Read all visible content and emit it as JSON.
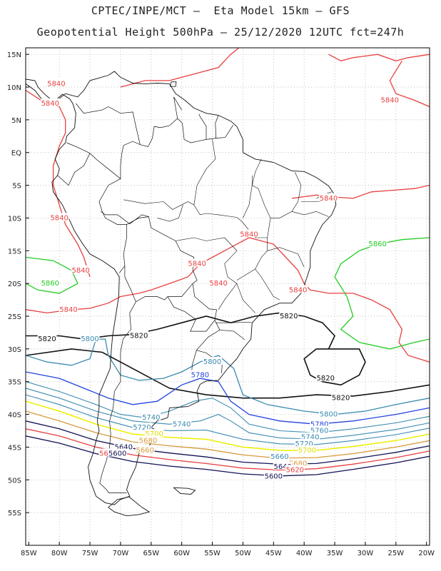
{
  "header": {
    "line1": "CPTEC/INPE/MCT –  Eta Model 15km – GFS",
    "line2": "Geopotential Height 500hPa – 25/12/2020 12UTC fct=247h"
  },
  "map": {
    "extent": {
      "lon": [
        -85.5,
        -19.5
      ],
      "lat": [
        -60,
        16
      ]
    },
    "lat_ticks": [
      {
        "v": 15,
        "label": "15N"
      },
      {
        "v": 10,
        "label": "10N"
      },
      {
        "v": 5,
        "label": "5N"
      },
      {
        "v": 0,
        "label": "EQ"
      },
      {
        "v": -5,
        "label": "5S"
      },
      {
        "v": -10,
        "label": "10S"
      },
      {
        "v": -15,
        "label": "15S"
      },
      {
        "v": -20,
        "label": "20S"
      },
      {
        "v": -25,
        "label": "25S"
      },
      {
        "v": -30,
        "label": "30S"
      },
      {
        "v": -35,
        "label": "35S"
      },
      {
        "v": -40,
        "label": "40S"
      },
      {
        "v": -45,
        "label": "45S"
      },
      {
        "v": -50,
        "label": "50S"
      },
      {
        "v": -55,
        "label": "55S"
      }
    ],
    "lon_ticks": [
      {
        "v": -85,
        "label": "85W"
      },
      {
        "v": -80,
        "label": "80W"
      },
      {
        "v": -75,
        "label": "75W"
      },
      {
        "v": -70,
        "label": "70W"
      },
      {
        "v": -65,
        "label": "65W"
      },
      {
        "v": -60,
        "label": "60W"
      },
      {
        "v": -55,
        "label": "55W"
      },
      {
        "v": -50,
        "label": "50W"
      },
      {
        "v": -45,
        "label": "45W"
      },
      {
        "v": -40,
        "label": "40W"
      },
      {
        "v": -35,
        "label": "35W"
      },
      {
        "v": -30,
        "label": "30W"
      },
      {
        "v": -25,
        "label": "25W"
      },
      {
        "v": -20,
        "label": "20W"
      }
    ],
    "contour_labels": [
      {
        "text": "5840",
        "color": "#e84040",
        "lon": -80.5,
        "lat": 10.5
      },
      {
        "text": "5840",
        "color": "#e84040",
        "lon": -81.5,
        "lat": 7.5
      },
      {
        "text": "5840",
        "color": "#e84040",
        "lon": -26,
        "lat": 8
      },
      {
        "text": "5840",
        "color": "#e84040",
        "lon": -80,
        "lat": -10
      },
      {
        "text": "5840",
        "color": "#e84040",
        "lon": -36,
        "lat": -7
      },
      {
        "text": "5840",
        "color": "#e84040",
        "lon": -49,
        "lat": -12.5
      },
      {
        "text": "5840",
        "color": "#e84040",
        "lon": -76.5,
        "lat": -18
      },
      {
        "text": "5840",
        "color": "#e84040",
        "lon": -57.5,
        "lat": -17
      },
      {
        "text": "5840",
        "color": "#e84040",
        "lon": -54,
        "lat": -20
      },
      {
        "text": "5840",
        "color": "#e84040",
        "lon": -41,
        "lat": -21
      },
      {
        "text": "5840",
        "color": "#e84040",
        "lon": -78.5,
        "lat": -24
      },
      {
        "text": "5860",
        "color": "#22cc22",
        "lon": -81.5,
        "lat": -20
      },
      {
        "text": "5860",
        "color": "#22cc22",
        "lon": -28,
        "lat": -14
      },
      {
        "text": "5820",
        "color": "#111111",
        "lon": -82,
        "lat": -28.5
      },
      {
        "text": "5820",
        "color": "#111111",
        "lon": -67,
        "lat": -28
      },
      {
        "text": "5820",
        "color": "#111111",
        "lon": -42.5,
        "lat": -25
      },
      {
        "text": "5820",
        "color": "#111111",
        "lon": -36.5,
        "lat": -34.5
      },
      {
        "text": "5820",
        "color": "#111111",
        "lon": -34,
        "lat": -37.5
      },
      {
        "text": "5800",
        "color": "#3a8ab0",
        "lon": -75,
        "lat": -28.5
      },
      {
        "text": "5800",
        "color": "#3a8ab0",
        "lon": -55,
        "lat": -32
      },
      {
        "text": "5800",
        "color": "#3a8ab0",
        "lon": -36,
        "lat": -40
      },
      {
        "text": "5780",
        "color": "#2244dd",
        "lon": -57,
        "lat": -34
      },
      {
        "text": "5780",
        "color": "#2244dd",
        "lon": -37.5,
        "lat": -41.5
      },
      {
        "text": "5760",
        "color": "#3a8ab0",
        "lon": -37.5,
        "lat": -42.5
      },
      {
        "text": "5740",
        "color": "#3a8ab0",
        "lon": -65,
        "lat": -40.5
      },
      {
        "text": "5740",
        "color": "#3a8ab0",
        "lon": -60,
        "lat": -41.5
      },
      {
        "text": "5740",
        "color": "#3a8ab0",
        "lon": -39,
        "lat": -43.5
      },
      {
        "text": "5720",
        "color": "#3a8ab0",
        "lon": -66.5,
        "lat": -42
      },
      {
        "text": "5720",
        "color": "#3a8ab0",
        "lon": -40,
        "lat": -44.5
      },
      {
        "text": "5700",
        "color": "#dddd00",
        "lon": -64.5,
        "lat": -43
      },
      {
        "text": "5700",
        "color": "#dddd00",
        "lon": -39.5,
        "lat": -45.5
      },
      {
        "text": "5680",
        "color": "#d89a3a",
        "lon": -65.5,
        "lat": -44
      },
      {
        "text": "5680",
        "color": "#d89a3a",
        "lon": -41,
        "lat": -47.5
      },
      {
        "text": "5660",
        "color": "#d89a3a",
        "lon": -66,
        "lat": -45.5
      },
      {
        "text": "5660",
        "color": "#3a8ab0",
        "lon": -44,
        "lat": -46.5
      },
      {
        "text": "5640",
        "color": "#111155",
        "lon": -69.5,
        "lat": -45
      },
      {
        "text": "5640",
        "color": "#111155",
        "lon": -43.5,
        "lat": -48
      },
      {
        "text": "5620",
        "color": "#e84040",
        "lon": -72,
        "lat": -46
      },
      {
        "text": "5620",
        "color": "#e84040",
        "lon": -41.5,
        "lat": -48.5
      },
      {
        "text": "5600",
        "color": "#111155",
        "lon": -70.5,
        "lat": -46
      },
      {
        "text": "5600",
        "color": "#111155",
        "lon": -45,
        "lat": -49.5
      }
    ],
    "colors": {
      "c5860": "#22cc22",
      "c5840": "#e84040",
      "c5820": "#111111",
      "c5800": "#3a8ab0",
      "c5780": "#2244dd",
      "c5700": "#eeee00",
      "c5680": "#d89a3a",
      "c5640": "#111155",
      "grid": "#aaaaaa",
      "coast": "#111111"
    }
  }
}
